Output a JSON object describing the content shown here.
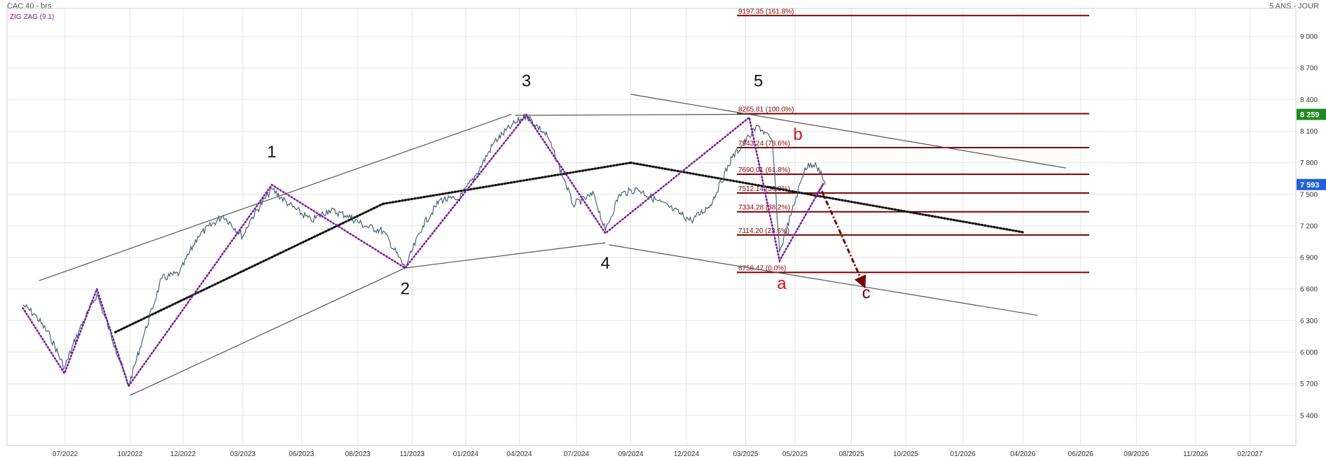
{
  "header": {
    "title": "CAC 40 - brs",
    "period": "5 ANS - JOUR",
    "indicator": "ZIG ZAG (9.1)"
  },
  "colors": {
    "price": "#3a5a6a",
    "zigzag": "#7a1fa2",
    "channel": "#555555",
    "trend_dotted": "#111111",
    "fib": "#7a0000",
    "wave_red": "#dd1111",
    "arrow": "#7a0000",
    "current_badge": "#1f5fe0",
    "high_badge": "#1e8a1e"
  },
  "chart_data": {
    "type": "line",
    "title": "CAC 40 - brs",
    "x_axis": {
      "range": [
        "2022-05",
        "2027-03"
      ],
      "tick_labels": [
        "07/2022",
        "10/2022",
        "12/2022",
        "03/2023",
        "06/2023",
        "08/2023",
        "11/2023",
        "01/2024",
        "04/2024",
        "07/2024",
        "09/2024",
        "12/2024",
        "03/2025",
        "05/2025",
        "08/2025",
        "10/2025",
        "01/2026",
        "04/2026",
        "06/2026",
        "09/2026",
        "11/2026",
        "02/2027"
      ]
    },
    "y_axis": {
      "range": [
        5200,
        9300
      ],
      "tick_labels": [
        "5 400",
        "5 700",
        "6 000",
        "6 300",
        "6 600",
        "6 900",
        "7 200",
        "7 500",
        "7 800",
        "8 100",
        "8 400",
        "8 700",
        "9 000"
      ],
      "side": "right"
    },
    "grid": true,
    "series": [
      {
        "kind": "price",
        "x": [
          "2022-05-02",
          "2022-05-20",
          "2022-06-10",
          "2022-06-30",
          "2022-07-20",
          "2022-08-15",
          "2022-09-10",
          "2022-09-29",
          "2022-10-20",
          "2022-11-15",
          "2022-12-10",
          "2023-01-05",
          "2023-02-10",
          "2023-03-10",
          "2023-03-20",
          "2023-04-20",
          "2023-05-15",
          "2023-06-15",
          "2023-07-10",
          "2023-08-05",
          "2023-08-30",
          "2023-09-25",
          "2023-10-26",
          "2023-11-20",
          "2023-12-15",
          "2024-01-10",
          "2024-02-05",
          "2024-03-01",
          "2024-03-25",
          "2024-04-15",
          "2024-05-15",
          "2024-06-10",
          "2024-06-20",
          "2024-07-20",
          "2024-08-05",
          "2024-08-25",
          "2024-09-20",
          "2024-10-15",
          "2024-11-10",
          "2024-12-05",
          "2025-01-01",
          "2025-02-01",
          "2025-02-25",
          "2025-03-10",
          "2025-03-30",
          "2025-04-09",
          "2025-04-25",
          "2025-05-15",
          "2025-05-30",
          "2025-06-13"
        ],
        "y": [
          6450,
          6350,
          6150,
          5850,
          6200,
          6550,
          6050,
          5680,
          6150,
          6700,
          6750,
          7100,
          7300,
          7100,
          7250,
          7550,
          7400,
          7250,
          7350,
          7300,
          7200,
          7150,
          6800,
          7200,
          7450,
          7450,
          7700,
          8000,
          8150,
          8250,
          8050,
          7600,
          7400,
          7500,
          7150,
          7500,
          7550,
          7450,
          7350,
          7250,
          7400,
          7850,
          8050,
          8150,
          8000,
          6950,
          7300,
          7750,
          7800,
          7593
        ]
      },
      {
        "kind": "zigzag",
        "x": [
          "2022-05-02",
          "2022-06-30",
          "2022-08-15",
          "2022-09-29",
          "2023-04-20",
          "2023-10-26",
          "2024-04-15",
          "2024-08-05",
          "2025-02-25",
          "2025-04-09",
          "2025-06-10",
          "2025-06-02"
        ],
        "y": [
          6420,
          5800,
          6600,
          5680,
          7590,
          6800,
          8255,
          7130,
          8230,
          6870,
          7600,
          7510
        ]
      }
    ],
    "annotations": {
      "waves": [
        {
          "label": "1",
          "x": "2023-04-20",
          "y": 7850
        },
        {
          "label": "2",
          "x": "2023-10-26",
          "y": 6550
        },
        {
          "label": "3",
          "x": "2024-04-15",
          "y": 8525
        },
        {
          "label": "4",
          "x": "2024-08-05",
          "y": 6795
        },
        {
          "label": "5",
          "x": "2025-03-10",
          "y": 8525
        },
        {
          "label": "a",
          "x": "2025-04-12",
          "y": 6600
        },
        {
          "label": "b",
          "x": "2025-05-05",
          "y": 8015
        },
        {
          "label": "c",
          "x": "2025-08-10",
          "y": 6510
        }
      ],
      "fib_levels": [
        {
          "label": "9197.35  (161.8%)",
          "y": 9197.35
        },
        {
          "label": "8265.81  (100.0%)",
          "y": 8265.81
        },
        {
          "label": "7943.24  (78.6%)",
          "y": 7943.24
        },
        {
          "label": "7690.01  (61.8%)",
          "y": 7690.01
        },
        {
          "label": "7512.14  (50.0%)",
          "y": 7512.14
        },
        {
          "label": "7334.28  (38.2%)",
          "y": 7334.28
        },
        {
          "label": "7114.20  (23.6%)",
          "y": 7114.2
        },
        {
          "label": "6758.47  (0.0%)",
          "y": 6758.47
        }
      ],
      "price_badges": [
        {
          "label": "8 259",
          "y": 8259,
          "kind": "high"
        },
        {
          "label": "7 593",
          "y": 7593,
          "kind": "current"
        }
      ]
    }
  }
}
